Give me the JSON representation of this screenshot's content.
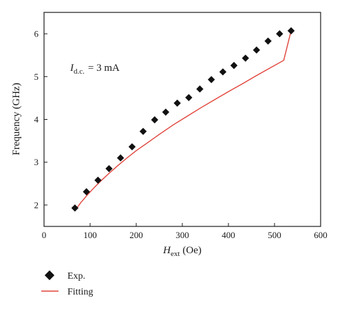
{
  "chart_data": {
    "type": "scatter",
    "x_axis": {
      "min": 0,
      "max": 600,
      "ticks": [
        0,
        100,
        200,
        300,
        400,
        500,
        600
      ]
    },
    "y_axis": {
      "min": 1.5,
      "max": 6.5,
      "ticks": [
        2,
        3,
        4,
        5,
        6
      ]
    },
    "xlabel": {
      "main": "H",
      "sub": "ext",
      "unit": "(Oe)"
    },
    "ylabel": "Frequency (GHz)",
    "annotation": {
      "main": "I",
      "sub": "d.c.",
      "rest": "= 3 mA"
    },
    "legend": {
      "position": "bottom-left",
      "entries": [
        "Exp.",
        "Fitting"
      ]
    },
    "colors": {
      "points": "#111111",
      "fit": "#e0433a"
    },
    "grid": false,
    "series": [
      {
        "name": "Exp.",
        "kind": "points",
        "x": [
          67,
          92,
          117,
          141,
          166,
          191,
          215,
          240,
          264,
          289,
          314,
          338,
          363,
          388,
          412,
          437,
          461,
          486,
          511,
          536
        ],
        "y": [
          1.93,
          2.31,
          2.58,
          2.85,
          3.1,
          3.36,
          3.72,
          3.99,
          4.17,
          4.38,
          4.51,
          4.71,
          4.93,
          5.11,
          5.26,
          5.43,
          5.62,
          5.83,
          6.0,
          6.07
        ]
      },
      {
        "name": "Fitting",
        "kind": "line",
        "x": [
          67,
          80,
          95,
          110,
          125,
          140,
          160,
          180,
          200,
          220,
          250,
          280,
          310,
          340,
          370,
          400,
          430,
          460,
          490,
          520,
          536
        ],
        "y": [
          1.87,
          2.06,
          2.25,
          2.42,
          2.58,
          2.73,
          2.92,
          3.1,
          3.27,
          3.42,
          3.65,
          3.87,
          4.07,
          4.27,
          4.46,
          4.65,
          4.83,
          5.02,
          5.2,
          5.38,
          6.07
        ]
      }
    ]
  }
}
